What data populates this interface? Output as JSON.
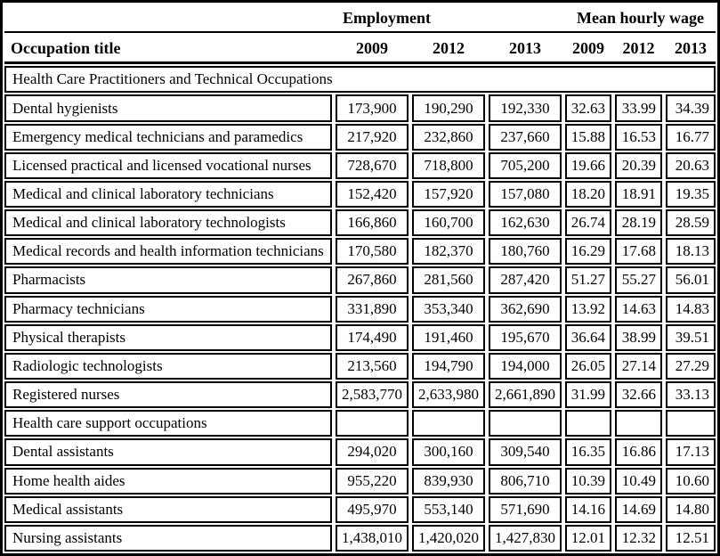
{
  "colors": {
    "border": "#000000",
    "background": "#ffffff",
    "text": "#000000"
  },
  "chart_data": {
    "type": "table",
    "column_groups": [
      "Employment",
      "Mean hourly wage"
    ],
    "row_header": "Occupation title",
    "year_headers": [
      "2009",
      "2012",
      "2013",
      "2009",
      "2012",
      "2013"
    ],
    "sections": [
      {
        "title": "Health Care Practitioners and Technical Occupations",
        "full_span": true,
        "rows": [
          {
            "occupation": "Dental hygienists",
            "values": [
              "173,900",
              "190,290",
              "192,330",
              "32.63",
              "33.99",
              "34.39"
            ]
          },
          {
            "occupation": "Emergency medical technicians and paramedics",
            "values": [
              "217,920",
              "232,860",
              "237,660",
              "15.88",
              "16.53",
              "16.77"
            ]
          },
          {
            "occupation": "Licensed practical and licensed vocational nurses",
            "values": [
              "728,670",
              "718,800",
              "705,200",
              "19.66",
              "20.39",
              "20.63"
            ]
          },
          {
            "occupation": "Medical and clinical laboratory technicians",
            "values": [
              "152,420",
              "157,920",
              "157,080",
              "18.20",
              "18.91",
              "19.35"
            ]
          },
          {
            "occupation": "Medical and clinical laboratory technologists",
            "values": [
              "166,860",
              "160,700",
              "162,630",
              "26.74",
              "28.19",
              "28.59"
            ]
          },
          {
            "occupation": "Medical records and health information technicians",
            "values": [
              "170,580",
              "182,370",
              "180,760",
              "16.29",
              "17.68",
              "18.13"
            ]
          },
          {
            "occupation": "Pharmacists",
            "values": [
              "267,860",
              "281,560",
              "287,420",
              "51.27",
              "55.27",
              "56.01"
            ]
          },
          {
            "occupation": "Pharmacy technicians",
            "values": [
              "331,890",
              "353,340",
              "362,690",
              "13.92",
              "14.63",
              "14.83"
            ]
          },
          {
            "occupation": "Physical therapists",
            "values": [
              "174,490",
              "191,460",
              "195,670",
              "36.64",
              "38.99",
              "39.51"
            ]
          },
          {
            "occupation": "Radiologic technologists",
            "values": [
              "213,560",
              "194,790",
              "194,000",
              "26.05",
              "27.14",
              "27.29"
            ]
          },
          {
            "occupation": "Registered nurses",
            "values": [
              "2,583,770",
              "2,633,980",
              "2,661,890",
              "31.99",
              "32.66",
              "33.13"
            ]
          }
        ]
      },
      {
        "title": "Health care support occupations",
        "full_span": false,
        "rows": [
          {
            "occupation": "Dental assistants",
            "values": [
              "294,020",
              "300,160",
              "309,540",
              "16.35",
              "16.86",
              "17.13"
            ]
          },
          {
            "occupation": "Home health aides",
            "values": [
              "955,220",
              "839,930",
              "806,710",
              "10.39",
              "10.49",
              "10.60"
            ]
          },
          {
            "occupation": "Medical assistants",
            "values": [
              "495,970",
              "553,140",
              "571,690",
              "14.16",
              "14.69",
              "14.80"
            ]
          },
          {
            "occupation": "Nursing assistants",
            "values": [
              "1,438,010",
              "1,420,020",
              "1,427,830",
              "12.01",
              "12.32",
              "12.51"
            ]
          }
        ]
      }
    ]
  }
}
